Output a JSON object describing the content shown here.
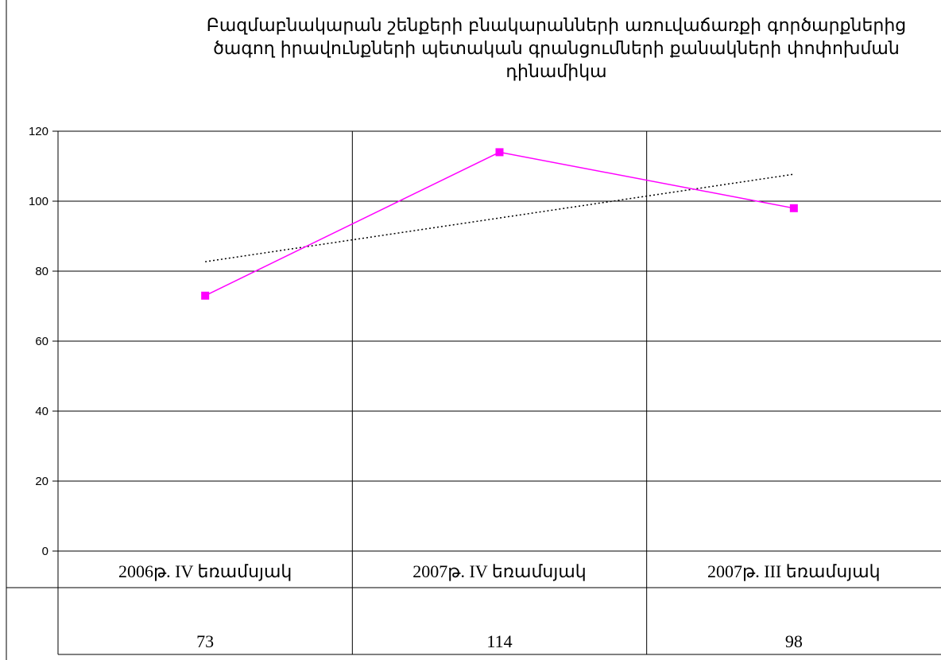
{
  "chart_data": {
    "type": "line",
    "title": "Բազմաբնակարան շենքերի բնակարանների առուվաճառքի գործարքներից ծագող իրավունքների պետական գրանցումների քանակների փոփոխման դինամիկա",
    "categories": [
      "2006թ.  IV եռամսյակ",
      "2007թ.  IV եռամսյակ",
      "2007թ.  III եռամսյակ"
    ],
    "series": [
      {
        "values": [
          73,
          114,
          98
        ],
        "color": "#ff00ff",
        "marker": "square"
      }
    ],
    "trendline": {
      "type": "linear",
      "style": "dotted",
      "color": "#000000",
      "values": [
        82.7,
        95.2,
        107.7
      ]
    },
    "data_table": [
      "73",
      "114",
      "98"
    ],
    "ylim": [
      0,
      120
    ],
    "yticks": [
      "0",
      "20",
      "40",
      "60",
      "80",
      "100",
      "120"
    ],
    "xlabel": "",
    "ylabel": "",
    "grid": true,
    "legend": "none"
  }
}
